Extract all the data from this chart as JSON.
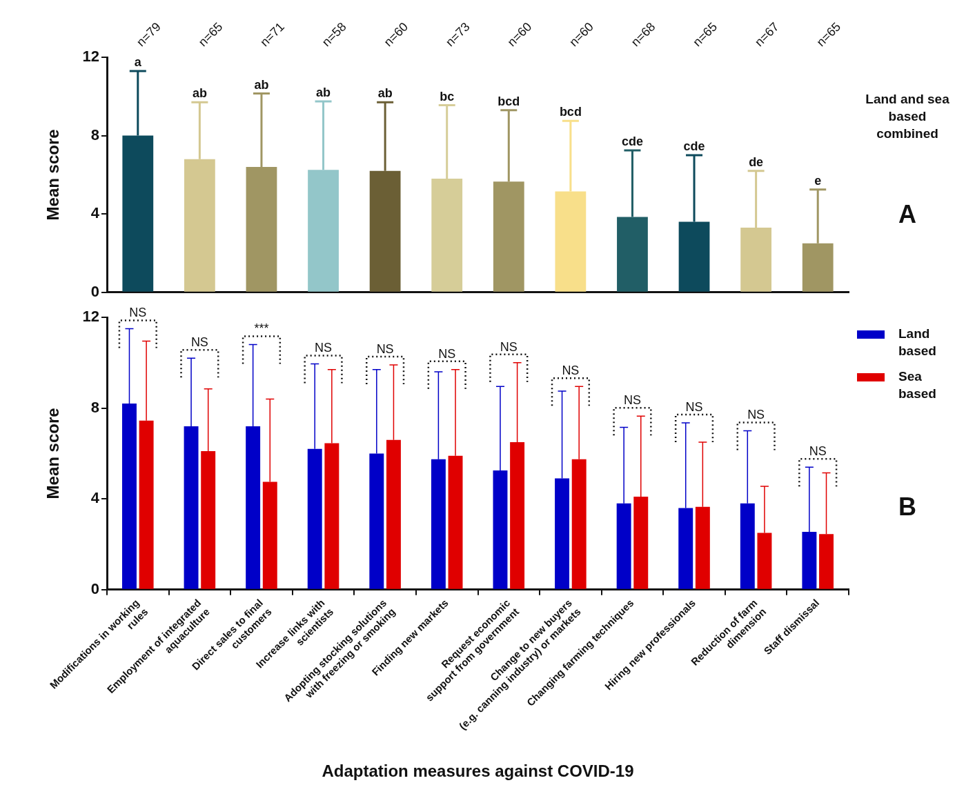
{
  "chart_data": [
    {
      "type": "bar",
      "ylabel": "Mean score",
      "tick_labels": "y",
      "legend": false,
      "grid": false,
      "categories": [
        "Modifications in working\nrules",
        "Employment of integrated\naquaculture",
        "Direct sales to final\ncustomers",
        "Increase links with\nscientists",
        "Adopting stocking solutions\nwith freezing or smoking",
        "Finding new markets",
        "Request economic\nsupport from government",
        "Change to new buyers\n(e.g. canning industry) or markets",
        "Changing farming techniques",
        "Hiring new professionals",
        "Reduction of farm\ndimension",
        "Staff dismissal"
      ],
      "values": [
        8.0,
        6.8,
        6.4,
        6.25,
        6.2,
        5.8,
        5.65,
        5.15,
        3.85,
        3.6,
        3.3,
        2.5
      ],
      "colors": [
        "#0d4a5c",
        "#d4c891",
        "#a09663",
        "#93c6c9",
        "#6b5f35",
        "#d6cd98",
        "#a09663",
        "#f8df8a",
        "#215e66",
        "#0d4a5c",
        "#d4c891",
        "#a09663"
      ],
      "errors": [
        [
          8.0,
          11.3
        ],
        [
          6.8,
          9.7
        ],
        [
          6.4,
          10.15
        ],
        [
          6.25,
          9.75
        ],
        [
          6.2,
          9.7
        ],
        [
          5.8,
          9.55
        ],
        [
          5.65,
          9.3
        ],
        [
          5.15,
          8.75
        ],
        [
          3.85,
          7.25
        ],
        [
          3.6,
          7.0
        ],
        [
          3.3,
          6.2
        ],
        [
          2.5,
          5.25
        ]
      ],
      "ylim": [
        0,
        12
      ],
      "yticks": [
        0,
        4,
        8,
        12
      ],
      "annotations": [
        "n=79",
        "n=65",
        "n=71",
        "n=58",
        "n=60",
        "n=73",
        "n=60",
        "n=60",
        "n=68",
        "n=65",
        "n=67",
        "n=65",
        {
          "text": "a",
          "x": "Modifications in working\nrules",
          "y": 11.3
        },
        {
          "text": "ab",
          "x": "Employment of integrated\naquaculture",
          "y": 9.7
        },
        {
          "text": "ab",
          "x": "Direct sales to final\ncustomers",
          "y": 10.15
        },
        {
          "text": "ab",
          "x": "Increase links with\nscientists",
          "y": 9.75
        },
        {
          "text": "ab",
          "x": "Adopting stocking solutions\nwith freezing or smoking",
          "y": 9.7
        },
        {
          "text": "bc",
          "x": "Finding new markets",
          "y": 9.55
        },
        {
          "text": "bcd",
          "x": "Request economic\nsupport from government",
          "y": 9.3
        },
        {
          "text": "bcd",
          "x": "Change to new buyers\n(e.g. canning industry) or markets",
          "y": 8.75
        },
        {
          "text": "cde",
          "x": "Changing farming techniques",
          "y": 7.25
        },
        {
          "text": "cde",
          "x": "Hiring new professionals",
          "y": 7.0
        },
        {
          "text": "de",
          "x": "Reduction of farm\ndimension",
          "y": 6.2
        },
        {
          "text": "e",
          "x": "Staff dismissal",
          "y": 5.25
        },
        "Land and sea based combined",
        "A"
      ]
    },
    {
      "type": "bar",
      "ylabel": "Mean score",
      "xlabel": "Adaptation measures against COVID-19",
      "legend": "top right",
      "grid": false,
      "categories": [
        "Modifications in working\nrules",
        "Employment of integrated\naquaculture",
        "Direct sales to final\ncustomers",
        "Increase links with\nscientists",
        "Adopting stocking solutions\nwith freezing or smoking",
        "Finding new markets",
        "Request economic\nsupport from government",
        "Change to new buyers\n(e.g. canning industry) or markets",
        "Changing farming techniques",
        "Hiring new professionals",
        "Reduction of farm\ndimension",
        "Staff dismissal"
      ],
      "series": [
        {
          "name": "Land based",
          "color": "#0000c8",
          "values": [
            8.2,
            7.2,
            7.2,
            6.2,
            6.0,
            5.75,
            5.25,
            4.9,
            3.8,
            3.6,
            3.8,
            2.55
          ],
          "errors": [
            [
              8.2,
              11.5
            ],
            [
              7.2,
              10.2
            ],
            [
              7.2,
              10.8
            ],
            [
              6.2,
              9.95
            ],
            [
              6.0,
              9.7
            ],
            [
              5.75,
              9.6
            ],
            [
              5.25,
              8.95
            ],
            [
              4.9,
              8.75
            ],
            [
              3.8,
              7.15
            ],
            [
              3.6,
              7.35
            ],
            [
              3.8,
              7.0
            ],
            [
              2.55,
              5.4
            ]
          ]
        },
        {
          "name": "Sea based",
          "color": "#e00000",
          "values": [
            7.45,
            6.1,
            4.75,
            6.45,
            6.6,
            5.9,
            6.5,
            5.75,
            4.1,
            3.65,
            2.5,
            2.45
          ],
          "errors": [
            [
              7.45,
              10.95
            ],
            [
              6.1,
              8.85
            ],
            [
              4.75,
              8.4
            ],
            [
              6.45,
              9.7
            ],
            [
              6.6,
              9.9
            ],
            [
              5.9,
              9.7
            ],
            [
              6.5,
              10.0
            ],
            [
              5.75,
              8.95
            ],
            [
              4.1,
              7.65
            ],
            [
              3.65,
              6.5
            ],
            [
              2.5,
              4.55
            ],
            [
              2.45,
              5.15
            ]
          ]
        }
      ],
      "ylim": [
        0,
        12
      ],
      "yticks": [
        0,
        4,
        8,
        12
      ],
      "annotations": [
        "NS",
        "NS",
        "***",
        "NS",
        "NS",
        "NS",
        "NS",
        "NS",
        "NS",
        "NS",
        "NS",
        "NS",
        "B"
      ]
    }
  ]
}
